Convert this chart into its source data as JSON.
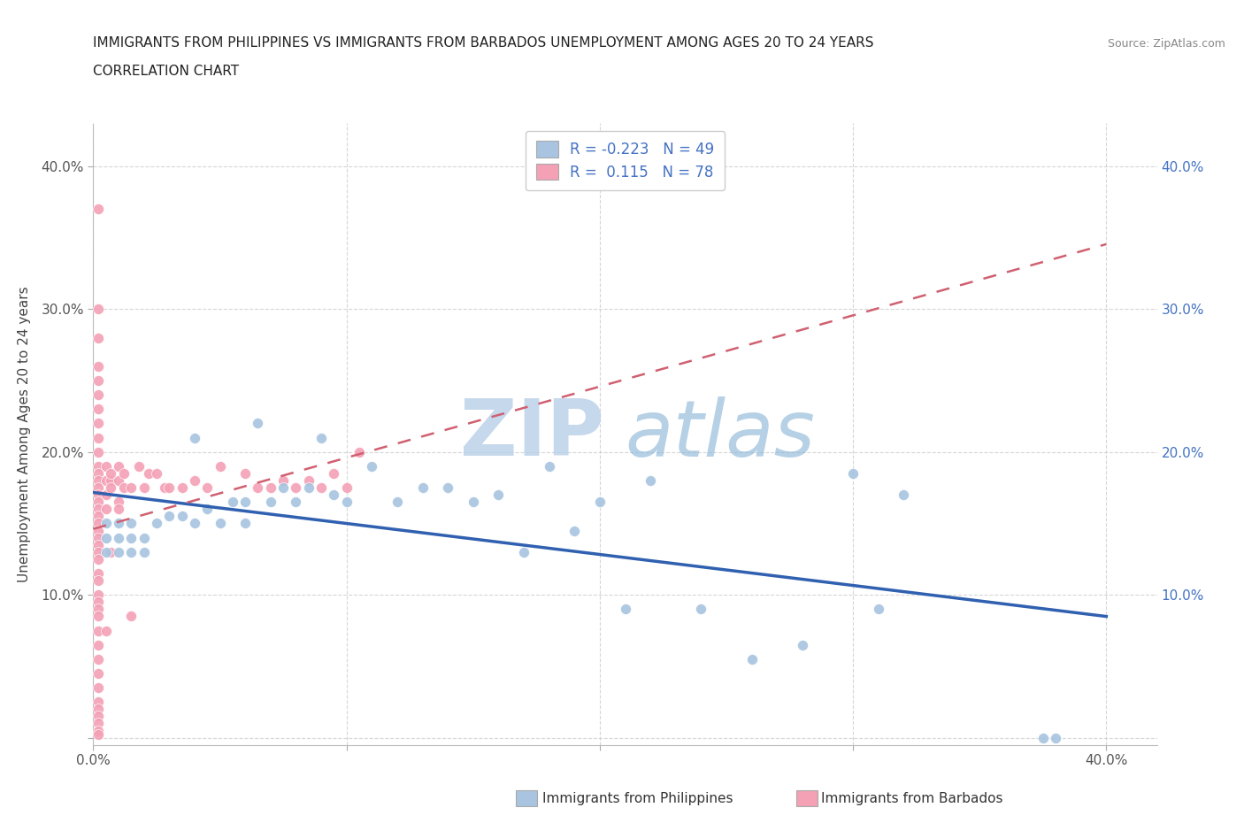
{
  "title_line1": "IMMIGRANTS FROM PHILIPPINES VS IMMIGRANTS FROM BARBADOS UNEMPLOYMENT AMONG AGES 20 TO 24 YEARS",
  "title_line2": "CORRELATION CHART",
  "source": "Source: ZipAtlas.com",
  "ylabel": "Unemployment Among Ages 20 to 24 years",
  "xlim": [
    0.0,
    0.42
  ],
  "ylim": [
    -0.005,
    0.43
  ],
  "philippines_R": -0.223,
  "philippines_N": 49,
  "barbados_R": 0.115,
  "barbados_N": 78,
  "philippines_color": "#a8c4e0",
  "barbados_color": "#f4a0b5",
  "philippines_line_color": "#3060b0",
  "barbados_line_color": "#d06070",
  "legend_box_phil_color": "#a8c4e0",
  "legend_box_barb_color": "#f4a0b5",
  "philippines_x": [
    0.005,
    0.005,
    0.005,
    0.01,
    0.01,
    0.01,
    0.015,
    0.015,
    0.015,
    0.02,
    0.02,
    0.025,
    0.03,
    0.035,
    0.04,
    0.04,
    0.045,
    0.05,
    0.055,
    0.06,
    0.06,
    0.065,
    0.07,
    0.075,
    0.08,
    0.085,
    0.09,
    0.095,
    0.1,
    0.11,
    0.12,
    0.13,
    0.14,
    0.15,
    0.16,
    0.17,
    0.18,
    0.19,
    0.2,
    0.21,
    0.22,
    0.24,
    0.26,
    0.28,
    0.3,
    0.31,
    0.32,
    0.375,
    0.38
  ],
  "philippines_y": [
    0.13,
    0.14,
    0.15,
    0.13,
    0.14,
    0.15,
    0.13,
    0.14,
    0.15,
    0.13,
    0.14,
    0.15,
    0.155,
    0.155,
    0.15,
    0.21,
    0.16,
    0.15,
    0.165,
    0.15,
    0.165,
    0.22,
    0.165,
    0.175,
    0.165,
    0.175,
    0.21,
    0.17,
    0.165,
    0.19,
    0.165,
    0.175,
    0.175,
    0.165,
    0.17,
    0.13,
    0.19,
    0.145,
    0.165,
    0.09,
    0.18,
    0.09,
    0.055,
    0.065,
    0.185,
    0.09,
    0.17,
    0.0,
    0.0
  ],
  "barbados_x": [
    0.002,
    0.002,
    0.002,
    0.002,
    0.002,
    0.002,
    0.002,
    0.002,
    0.002,
    0.002,
    0.002,
    0.002,
    0.002,
    0.002,
    0.002,
    0.002,
    0.002,
    0.002,
    0.002,
    0.002,
    0.002,
    0.002,
    0.002,
    0.002,
    0.002,
    0.002,
    0.002,
    0.002,
    0.002,
    0.002,
    0.002,
    0.002,
    0.002,
    0.002,
    0.002,
    0.002,
    0.002,
    0.002,
    0.002,
    0.002,
    0.002,
    0.005,
    0.005,
    0.005,
    0.005,
    0.005,
    0.007,
    0.007,
    0.007,
    0.007,
    0.01,
    0.01,
    0.01,
    0.01,
    0.012,
    0.012,
    0.015,
    0.015,
    0.018,
    0.02,
    0.022,
    0.025,
    0.028,
    0.03,
    0.035,
    0.04,
    0.045,
    0.05,
    0.06,
    0.065,
    0.07,
    0.075,
    0.08,
    0.085,
    0.09,
    0.095,
    0.1,
    0.105
  ],
  "barbados_y": [
    0.37,
    0.3,
    0.28,
    0.26,
    0.25,
    0.24,
    0.23,
    0.22,
    0.21,
    0.2,
    0.19,
    0.185,
    0.18,
    0.175,
    0.17,
    0.165,
    0.16,
    0.155,
    0.15,
    0.145,
    0.14,
    0.135,
    0.13,
    0.125,
    0.115,
    0.11,
    0.1,
    0.095,
    0.09,
    0.085,
    0.075,
    0.065,
    0.055,
    0.045,
    0.035,
    0.025,
    0.02,
    0.015,
    0.01,
    0.005,
    0.002,
    0.18,
    0.19,
    0.17,
    0.16,
    0.075,
    0.18,
    0.175,
    0.13,
    0.185,
    0.18,
    0.19,
    0.165,
    0.16,
    0.175,
    0.185,
    0.175,
    0.085,
    0.19,
    0.175,
    0.185,
    0.185,
    0.175,
    0.175,
    0.175,
    0.18,
    0.175,
    0.19,
    0.185,
    0.175,
    0.175,
    0.18,
    0.175,
    0.18,
    0.175,
    0.185,
    0.175,
    0.2
  ]
}
